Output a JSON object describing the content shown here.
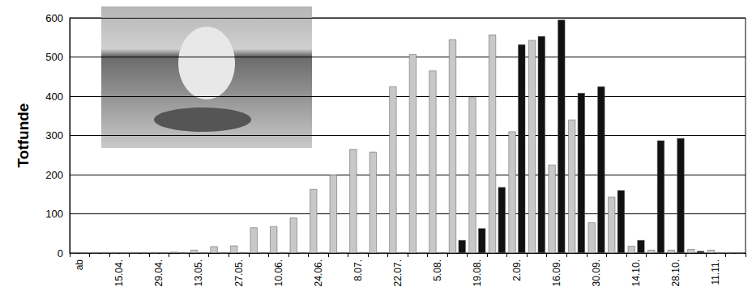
{
  "chart_data": {
    "type": "bar",
    "y_label": "Totfunde",
    "categories": [
      "ab",
      null,
      "15.04.",
      null,
      "29.04.",
      null,
      "13.05.",
      null,
      "27.05.",
      null,
      "10.06.",
      null,
      "24.06.",
      null,
      "8.07.",
      null,
      "22.07.",
      null,
      "5.08.",
      null,
      "19.08.",
      null,
      "2.09.",
      null,
      "16.09.",
      null,
      "30.09.",
      null,
      "14.10.",
      null,
      "28.10.",
      null,
      "11.11.",
      null
    ],
    "series": [
      {
        "color": "#c8c8c8",
        "values": [
          0,
          0,
          0,
          0,
          0,
          3,
          8,
          17,
          19,
          65,
          68,
          90,
          163,
          200,
          265,
          258,
          425,
          507,
          465,
          545,
          397,
          557,
          310,
          543,
          225,
          340,
          78,
          143,
          18,
          8,
          8,
          10,
          8,
          0
        ]
      },
      {
        "color": "#111111",
        "values": [
          0,
          0,
          0,
          0,
          0,
          0,
          0,
          0,
          0,
          0,
          0,
          0,
          0,
          0,
          0,
          0,
          0,
          0,
          0,
          33,
          63,
          168,
          532,
          553,
          595,
          408,
          425,
          160,
          33,
          287,
          293,
          5,
          0,
          0
        ]
      }
    ],
    "ylim": [
      0,
      600
    ],
    "yticks": [
      0,
      100,
      200,
      300,
      400,
      500,
      600
    ],
    "grid": true
  }
}
